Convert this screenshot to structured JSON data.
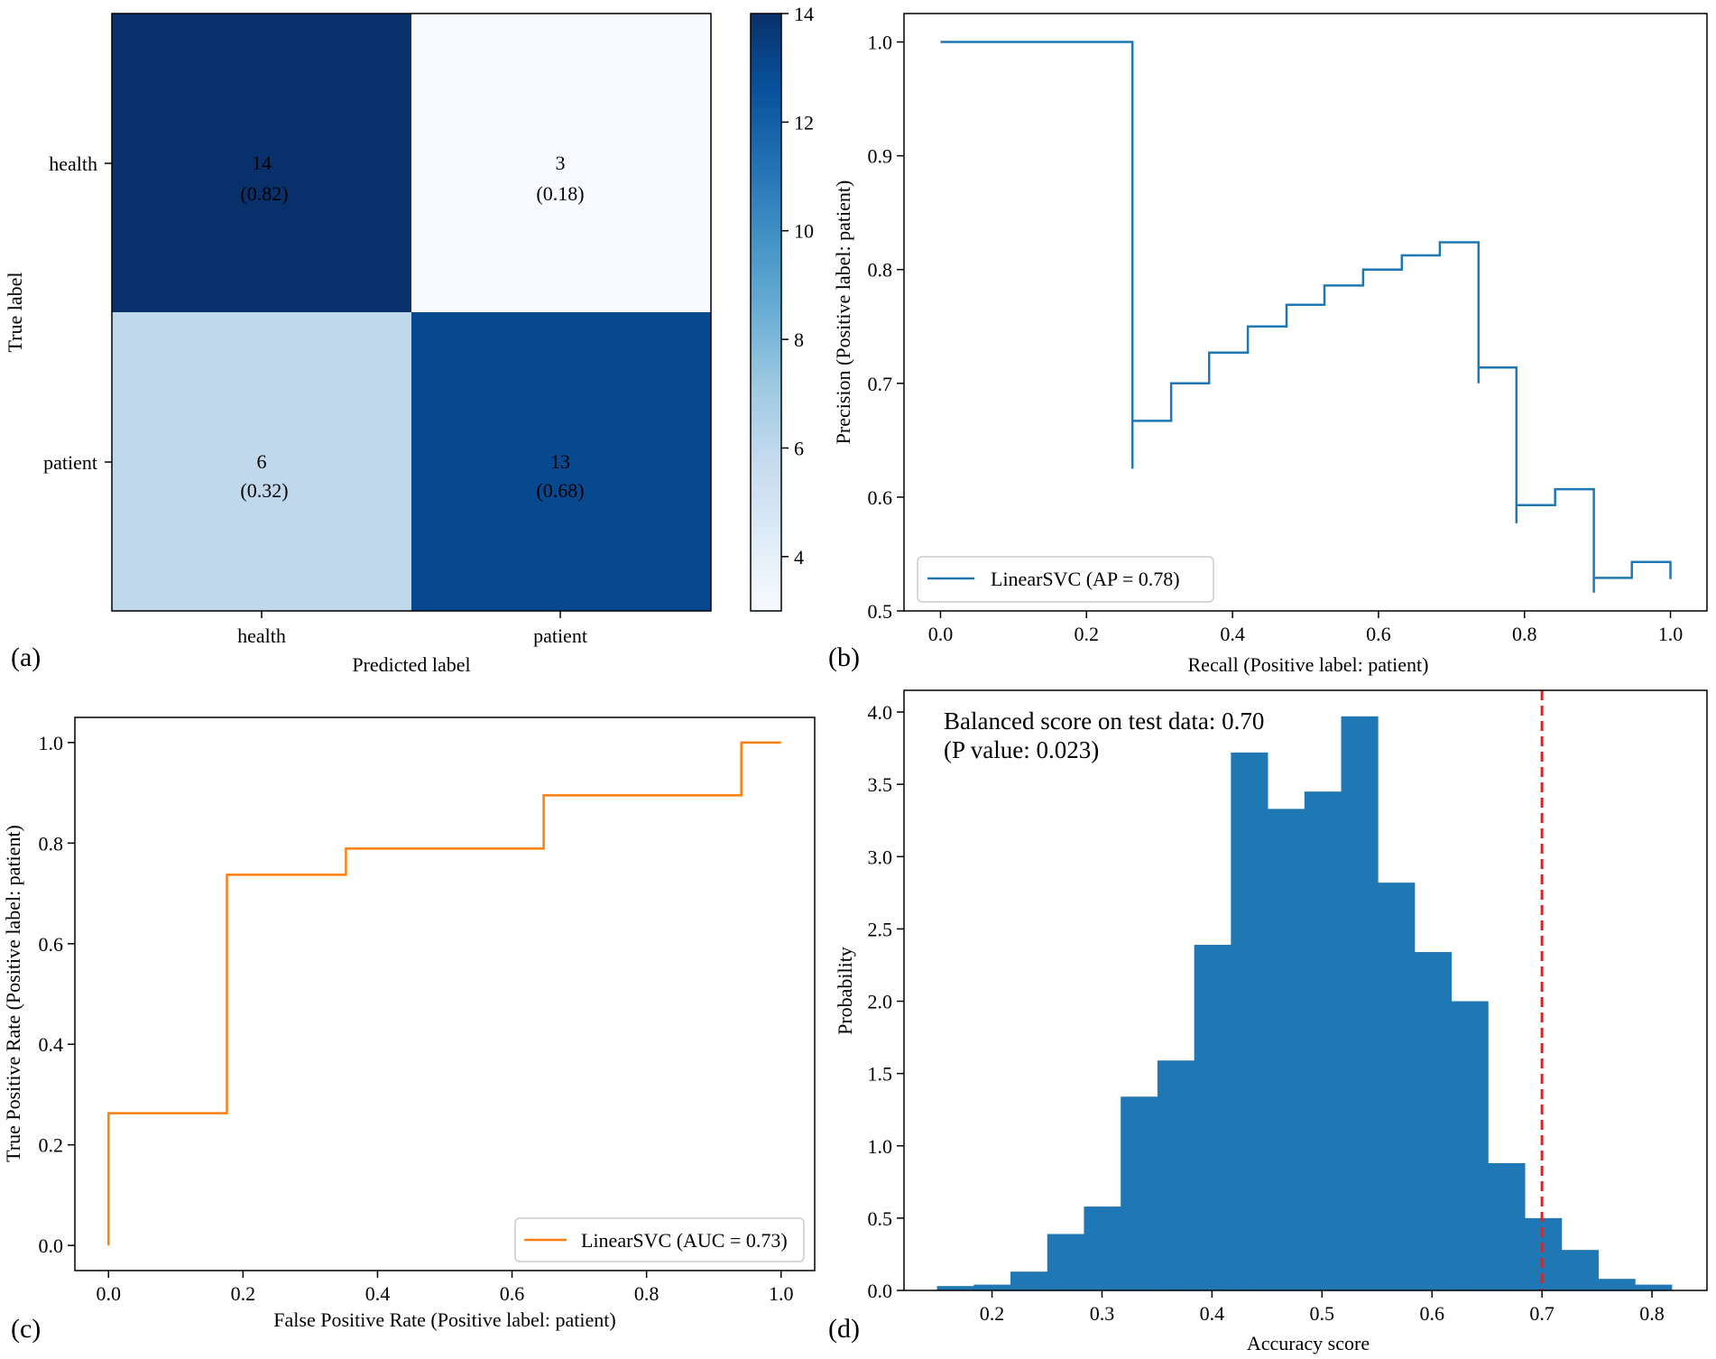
{
  "colors": {
    "cm_dark": "#08306b",
    "cm_light": "#f7fbff",
    "pr_line": "#1f77b4",
    "roc_line": "#ff7f0e",
    "hist_fill": "#1f77b4",
    "score_line": "#d62728"
  },
  "chart_data": [
    {
      "type": "heatmap",
      "panel_label": "(a)",
      "xlabel": "Predicted label",
      "ylabel": "True label",
      "x_categories": [
        "health",
        "patient"
      ],
      "y_categories": [
        "health",
        "patient"
      ],
      "cells": [
        [
          {
            "count": 14,
            "count_label": "14",
            "frac_label": "(0.82)"
          },
          {
            "count": 3,
            "count_label": "3",
            "frac_label": "(0.18)"
          }
        ],
        [
          {
            "count": 6,
            "count_label": "6",
            "frac_label": "(0.32)"
          },
          {
            "count": 13,
            "count_label": "13",
            "frac_label": "(0.68)"
          }
        ]
      ],
      "colorbar": {
        "min": 3,
        "max": 14,
        "ticks": [
          4,
          6,
          8,
          10,
          12,
          14
        ],
        "tick_labels": [
          "4",
          "6",
          "8",
          "10",
          "12",
          "14"
        ]
      }
    },
    {
      "type": "line",
      "panel_label": "(b)",
      "xlabel": "Recall (Positive label: patient)",
      "ylabel": "Precision (Positive label: patient)",
      "xlim": [
        -0.05,
        1.05
      ],
      "ylim": [
        0.5,
        1.025
      ],
      "xticks": [
        0,
        0.2,
        0.4,
        0.6,
        0.8,
        1.0
      ],
      "xtick_labels": [
        "0.0",
        "0.2",
        "0.4",
        "0.6",
        "0.8",
        "1.0"
      ],
      "yticks": [
        0.5,
        0.6,
        0.7,
        0.8,
        0.9,
        1.0
      ],
      "ytick_labels": [
        "0.5",
        "0.6",
        "0.7",
        "0.8",
        "0.9",
        "1.0"
      ],
      "legend": "LinearSVC (AP = 0.78)",
      "legend_loc": "lower-left",
      "series": [
        {
          "name": "LinearSVC",
          "x": [
            0,
            0.263,
            0.263,
            0.263,
            0.316,
            0.316,
            0.368,
            0.368,
            0.421,
            0.421,
            0.474,
            0.474,
            0.526,
            0.526,
            0.579,
            0.579,
            0.632,
            0.632,
            0.684,
            0.684,
            0.737,
            0.737,
            0.737,
            0.789,
            0.789,
            0.789,
            0.842,
            0.842,
            0.895,
            0.895,
            0.895,
            0.947,
            0.947,
            1.0,
            1.0
          ],
          "y": [
            1.0,
            1.0,
            0.625,
            0.667,
            0.667,
            0.7,
            0.7,
            0.727,
            0.727,
            0.75,
            0.75,
            0.769,
            0.769,
            0.786,
            0.786,
            0.8,
            0.8,
            0.8125,
            0.8125,
            0.824,
            0.824,
            0.7,
            0.714,
            0.714,
            0.577,
            0.593,
            0.593,
            0.607,
            0.607,
            0.516,
            0.529,
            0.529,
            0.543,
            0.543,
            0.528
          ]
        }
      ]
    },
    {
      "type": "line",
      "panel_label": "(c)",
      "xlabel": "False Positive Rate (Positive label: patient)",
      "ylabel": "True Positive Rate (Positive label: patient)",
      "xlim": [
        -0.05,
        1.05
      ],
      "ylim": [
        -0.05,
        1.05
      ],
      "xticks": [
        0,
        0.2,
        0.4,
        0.6,
        0.8,
        1.0
      ],
      "xtick_labels": [
        "0.0",
        "0.2",
        "0.4",
        "0.6",
        "0.8",
        "1.0"
      ],
      "yticks": [
        0,
        0.2,
        0.4,
        0.6,
        0.8,
        1.0
      ],
      "ytick_labels": [
        "0.0",
        "0.2",
        "0.4",
        "0.6",
        "0.8",
        "1.0"
      ],
      "legend": "LinearSVC (AUC = 0.73)",
      "legend_loc": "lower-right",
      "series": [
        {
          "name": "LinearSVC",
          "x": [
            0,
            0,
            0.176,
            0.176,
            0.353,
            0.353,
            0.647,
            0.647,
            0.941,
            0.941,
            1.0
          ],
          "y": [
            0,
            0.263,
            0.263,
            0.737,
            0.737,
            0.789,
            0.789,
            0.895,
            0.895,
            1.0,
            1.0
          ]
        }
      ]
    },
    {
      "type": "bar",
      "panel_label": "(d)",
      "xlabel": "Accuracy score",
      "ylabel": "Probability",
      "xlim": [
        0.12,
        0.85
      ],
      "ylim": [
        0,
        4.15
      ],
      "xticks": [
        0.2,
        0.3,
        0.4,
        0.5,
        0.6,
        0.7,
        0.8
      ],
      "xtick_labels": [
        "0.2",
        "0.3",
        "0.4",
        "0.5",
        "0.6",
        "0.7",
        "0.8"
      ],
      "yticks": [
        0,
        0.5,
        1.0,
        1.5,
        2.0,
        2.5,
        3.0,
        3.5,
        4.0
      ],
      "ytick_labels": [
        "0.0",
        "0.5",
        "1.0",
        "1.5",
        "2.0",
        "2.5",
        "3.0",
        "3.5",
        "4.0"
      ],
      "bin_edges": [
        0.15,
        0.1834,
        0.2168,
        0.2502,
        0.2836,
        0.317,
        0.3504,
        0.3838,
        0.4172,
        0.4506,
        0.484,
        0.5174,
        0.5508,
        0.5842,
        0.6176,
        0.651,
        0.6844,
        0.7178,
        0.7512,
        0.7846,
        0.818
      ],
      "values": [
        0.03,
        0.04,
        0.13,
        0.39,
        0.58,
        1.34,
        1.59,
        2.39,
        3.72,
        3.33,
        3.45,
        3.97,
        2.82,
        2.34,
        2.0,
        0.88,
        0.5,
        0.28,
        0.08,
        0.04
      ],
      "score_line_x": 0.7,
      "annotation": [
        "Balanced score on test data: 0.70",
        "(P value: 0.023)"
      ]
    }
  ]
}
